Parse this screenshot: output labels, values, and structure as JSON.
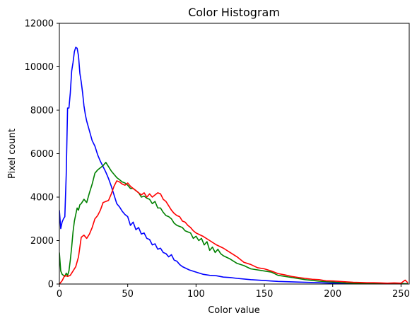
{
  "chart_data": {
    "type": "line",
    "title": "Color Histogram",
    "xlabel": "Color value",
    "ylabel": "Pixel count",
    "xlim": [
      0,
      256
    ],
    "ylim": [
      0,
      12000
    ],
    "xticks": [
      0,
      50,
      100,
      150,
      200,
      250
    ],
    "yticks": [
      0,
      2000,
      4000,
      6000,
      8000,
      10000,
      12000
    ],
    "grid": false,
    "legend": "none",
    "series": [
      {
        "color": "#0000ff",
        "x": [
          0,
          1,
          2,
          3,
          4,
          5,
          6,
          7,
          8,
          9,
          10,
          11,
          12,
          13,
          14,
          15,
          16,
          17,
          18,
          19,
          20,
          22,
          24,
          26,
          28,
          30,
          32,
          34,
          36,
          38,
          40,
          42,
          44,
          46,
          48,
          50,
          52,
          54,
          56,
          58,
          60,
          62,
          64,
          66,
          68,
          70,
          72,
          74,
          76,
          78,
          80,
          82,
          84,
          86,
          88,
          90,
          95,
          100,
          105,
          110,
          115,
          120,
          125,
          130,
          140,
          150,
          160,
          170,
          180,
          190,
          200,
          210,
          220,
          230,
          240,
          250,
          253,
          255
        ],
        "y": [
          3400,
          2550,
          2850,
          3000,
          3100,
          5000,
          8100,
          8100,
          8800,
          9800,
          10200,
          10700,
          10900,
          10850,
          10500,
          9700,
          9300,
          8800,
          8200,
          7800,
          7500,
          7050,
          6600,
          6350,
          5950,
          5650,
          5400,
          5150,
          4850,
          4500,
          4100,
          3700,
          3550,
          3350,
          3200,
          3100,
          2700,
          2850,
          2500,
          2600,
          2300,
          2350,
          2100,
          2050,
          1800,
          1850,
          1600,
          1650,
          1450,
          1400,
          1250,
          1350,
          1100,
          1050,
          900,
          800,
          650,
          550,
          450,
          400,
          380,
          320,
          300,
          260,
          200,
          160,
          120,
          100,
          80,
          60,
          40,
          30,
          20,
          20,
          10,
          10,
          10,
          10
        ]
      },
      {
        "color": "#008000",
        "x": [
          0,
          1,
          2,
          3,
          4,
          5,
          6,
          7,
          8,
          9,
          10,
          11,
          12,
          13,
          14,
          15,
          16,
          18,
          20,
          22,
          24,
          26,
          28,
          30,
          32,
          34,
          36,
          38,
          40,
          42,
          44,
          46,
          48,
          50,
          52,
          54,
          56,
          58,
          60,
          62,
          64,
          66,
          68,
          70,
          72,
          74,
          76,
          78,
          80,
          82,
          84,
          86,
          88,
          90,
          92,
          94,
          96,
          98,
          100,
          102,
          104,
          106,
          108,
          110,
          112,
          114,
          116,
          118,
          120,
          125,
          130,
          135,
          140,
          145,
          150,
          155,
          160,
          170,
          180,
          190,
          200,
          210,
          220,
          230,
          240,
          250,
          255
        ],
        "y": [
          1450,
          600,
          450,
          400,
          350,
          500,
          400,
          600,
          1100,
          1700,
          2400,
          2900,
          3200,
          3500,
          3400,
          3650,
          3700,
          3900,
          3750,
          4200,
          4600,
          5100,
          5250,
          5350,
          5450,
          5600,
          5400,
          5200,
          5050,
          4900,
          4800,
          4700,
          4650,
          4550,
          4400,
          4400,
          4300,
          4200,
          4000,
          4050,
          3950,
          3900,
          3700,
          3800,
          3500,
          3500,
          3300,
          3150,
          3100,
          3000,
          2800,
          2700,
          2650,
          2600,
          2450,
          2400,
          2350,
          2100,
          2200,
          2000,
          2100,
          1800,
          1950,
          1550,
          1700,
          1450,
          1600,
          1400,
          1300,
          1150,
          950,
          850,
          700,
          650,
          600,
          550,
          400,
          300,
          200,
          130,
          90,
          50,
          40,
          30,
          20,
          20,
          10
        ]
      },
      {
        "color": "#ff0000",
        "x": [
          0,
          2,
          4,
          6,
          8,
          10,
          12,
          14,
          16,
          18,
          20,
          22,
          24,
          26,
          28,
          30,
          32,
          34,
          36,
          38,
          40,
          42,
          44,
          46,
          48,
          50,
          52,
          54,
          56,
          58,
          60,
          62,
          64,
          66,
          68,
          70,
          72,
          74,
          76,
          78,
          80,
          82,
          84,
          86,
          88,
          90,
          92,
          94,
          96,
          98,
          100,
          105,
          110,
          115,
          120,
          125,
          130,
          135,
          140,
          145,
          150,
          155,
          160,
          165,
          170,
          175,
          180,
          185,
          190,
          195,
          200,
          205,
          210,
          215,
          220,
          225,
          230,
          235,
          240,
          245,
          250,
          253,
          255
        ],
        "y": [
          0,
          150,
          400,
          350,
          400,
          600,
          800,
          1250,
          2150,
          2250,
          2100,
          2300,
          2600,
          3000,
          3150,
          3400,
          3750,
          3800,
          3850,
          4150,
          4500,
          4750,
          4700,
          4600,
          4550,
          4650,
          4500,
          4400,
          4300,
          4200,
          4100,
          4200,
          4000,
          4150,
          4000,
          4100,
          4200,
          4150,
          3900,
          3800,
          3600,
          3400,
          3250,
          3150,
          3100,
          2900,
          2850,
          2700,
          2600,
          2450,
          2350,
          2200,
          2000,
          1800,
          1650,
          1450,
          1250,
          1000,
          900,
          750,
          700,
          600,
          480,
          420,
          350,
          300,
          260,
          220,
          200,
          150,
          140,
          120,
          100,
          80,
          70,
          60,
          60,
          50,
          40,
          50,
          40,
          180,
          60
        ]
      }
    ]
  }
}
